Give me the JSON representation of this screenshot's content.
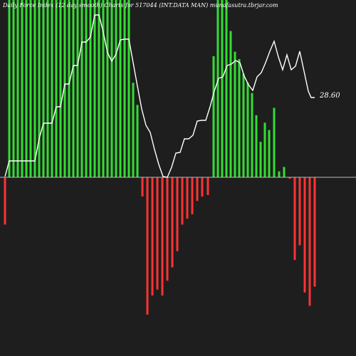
{
  "chart_data": {
    "type": "bar",
    "title": "Daily Force Index (12 day smooth) Charts for 517044 (INT.DATA MAN) munafasutra.tbrjar.com",
    "last_value_label": "28.60",
    "colors": {
      "background": "#1e1e1e",
      "positive": "#33dd33",
      "negative": "#ff3333",
      "line": "#ffffff",
      "zero_line": "#bbbbbb"
    },
    "bar_values": [
      -3.2,
      12,
      12,
      12,
      12,
      12,
      12,
      12,
      12,
      12,
      12,
      12,
      12,
      12,
      12,
      12,
      12,
      12,
      12,
      12,
      12,
      12,
      12,
      12,
      12,
      12,
      12,
      12,
      12,
      12,
      10.9,
      8.2,
      6.4,
      12,
      12,
      12,
      12,
      12,
      12,
      12,
      12,
      12,
      12,
      12,
      12,
      12,
      12,
      12,
      12,
      12,
      12,
      12,
      12,
      12,
      12,
      12,
      12,
      12,
      12,
      12,
      12,
      12,
      12,
      12,
      12,
      12,
      12,
      12,
      12,
      12,
      12,
      12,
      12,
      12,
      12,
      12,
      12,
      12,
      12,
      12
    ],
    "bar_pattern": {
      "x_start": 0,
      "note": ""
    },
    "bars": [
      -3.2,
      0,
      12,
      12,
      12,
      12,
      12,
      12,
      12,
      12,
      12,
      12,
      12,
      12,
      12,
      12,
      12,
      12,
      12,
      12,
      12,
      12,
      12,
      10.9,
      8.2,
      6.4,
      0,
      -1.7,
      -31.9,
      -27.6,
      -26.3,
      -27.6,
      -23.4,
      -19.6,
      -17.3,
      -13.0,
      -10.9,
      -9.6,
      -8.2,
      -5.2,
      -4.3,
      -4.3,
      0,
      0,
      0,
      0,
      0,
      0,
      0,
      0,
      0,
      0,
      0
    ],
    "line_y_relative": [
      1.0,
      0.88,
      0.88,
      0.88,
      0.88,
      0.88,
      0.88,
      0.88,
      0.58,
      0.58,
      0.26,
      0.26,
      0.26,
      0.08,
      -0.05,
      -0.05,
      -0.04,
      0.22,
      0.31,
      0.31,
      0.29,
      0.17,
      0.04,
      -0.12,
      -0.3,
      -0.38,
      -0.45,
      -0.53,
      -0.55
    ]
  }
}
